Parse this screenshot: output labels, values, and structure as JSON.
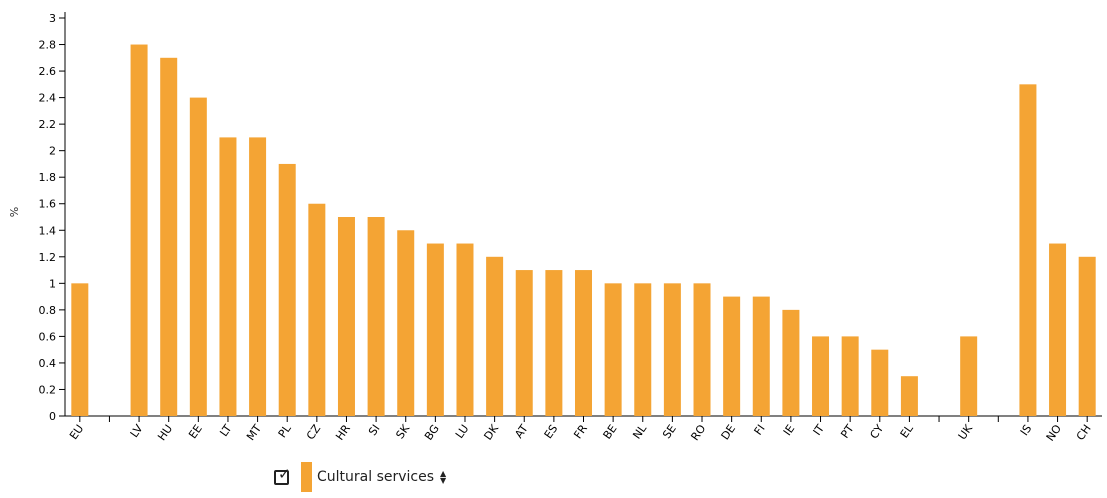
{
  "chart_data": {
    "type": "bar",
    "ylabel": "%",
    "xlabel": "",
    "ylim": [
      0,
      3
    ],
    "yticks": [
      "0",
      "0.2",
      "0.4",
      "0.6",
      "0.8",
      "1",
      "1.2",
      "1.4",
      "1.6",
      "1.8",
      "2",
      "2.2",
      "2.4",
      "2.6",
      "2.8",
      "3"
    ],
    "grid": false,
    "legend_position": "bottom",
    "categories": [
      "EU",
      "",
      "LV",
      "HU",
      "EE",
      "LT",
      "MT",
      "PL",
      "CZ",
      "HR",
      "SI",
      "SK",
      "BG",
      "LU",
      "DK",
      "AT",
      "ES",
      "FR",
      "BE",
      "NL",
      "SE",
      "RO",
      "DE",
      "FI",
      "IE",
      "IT",
      "PT",
      "CY",
      "EL",
      "",
      "UK",
      "",
      "IS",
      "NO",
      "CH"
    ],
    "series": [
      {
        "name": "Cultural services",
        "color": "#f4a434",
        "values": [
          1.0,
          null,
          2.8,
          2.7,
          2.4,
          2.1,
          2.1,
          1.9,
          1.6,
          1.5,
          1.5,
          1.4,
          1.3,
          1.3,
          1.2,
          1.1,
          1.1,
          1.1,
          1.0,
          1.0,
          1.0,
          1.0,
          0.9,
          0.9,
          0.8,
          0.6,
          0.6,
          0.5,
          0.3,
          null,
          0.6,
          null,
          2.5,
          1.3,
          1.2
        ]
      }
    ]
  },
  "legend": {
    "label": "Cultural services",
    "checked": true,
    "check_icon": "checkbox-checked-icon",
    "sort_icon": "sort-icon"
  }
}
